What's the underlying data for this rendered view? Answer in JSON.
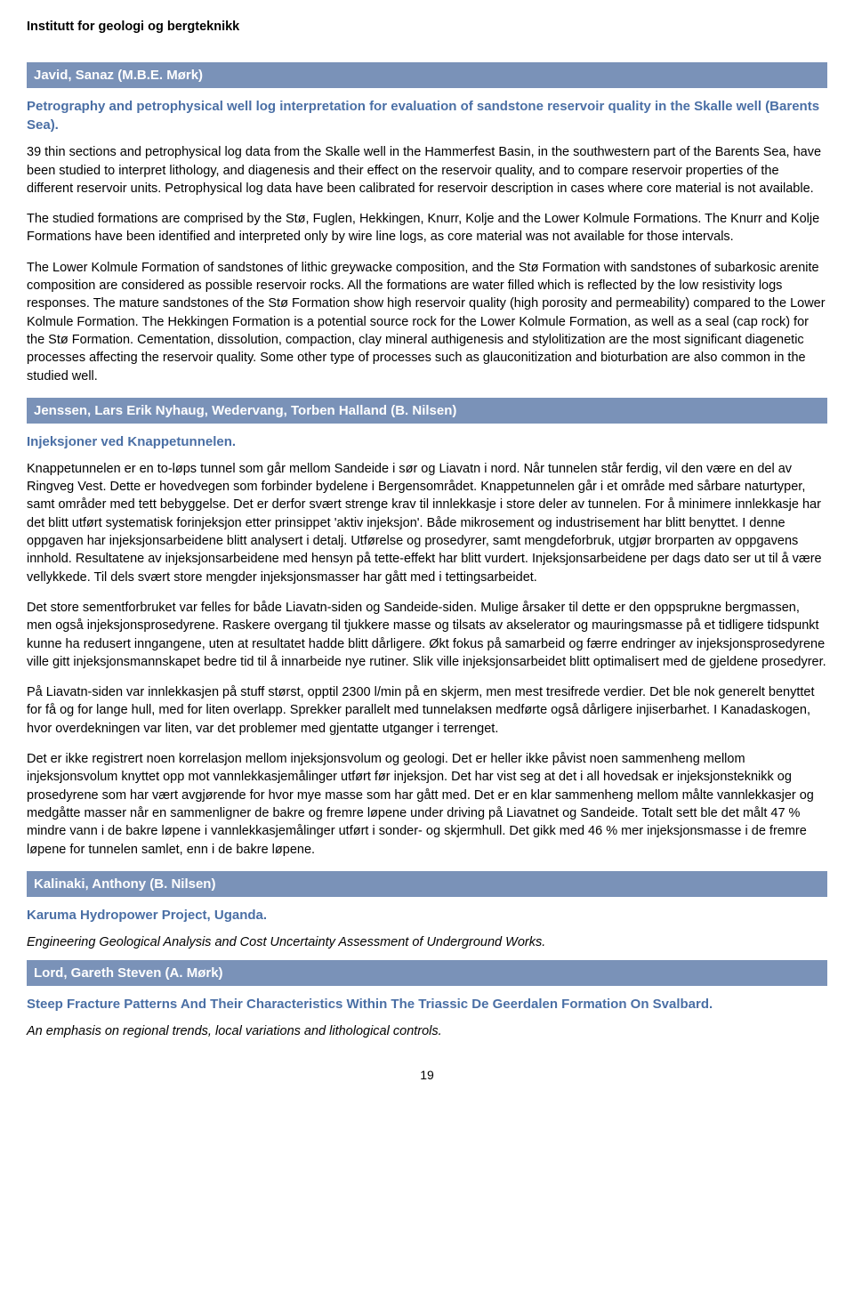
{
  "department": "Institutt for geologi og bergteknikk",
  "sections": [
    {
      "author": "Javid, Sanaz (M.B.E. Mørk)",
      "title": "Petrography and petrophysical well log interpretation for evaluation of sandstone reservoir quality in the Skalle well (Barents Sea).",
      "subtitle": "",
      "paragraphs": [
        "39 thin sections and petrophysical log data from the Skalle well in the Hammerfest Basin, in the southwestern part of the Barents Sea, have been studied to interpret lithology, and diagenesis and their effect on the reservoir quality, and to compare reservoir properties of the different reservoir units. Petrophysical log data have been calibrated for reservoir description in cases where core material is not available.",
        "The studied formations are comprised by the Stø, Fuglen, Hekkingen, Knurr, Kolje and the Lower Kolmule Formations. The Knurr and Kolje Formations have been identified and interpreted only by wire line logs, as core material was not available for those intervals.",
        "The Lower Kolmule Formation of sandstones of lithic greywacke composition, and the Stø Formation with sandstones of subarkosic arenite composition are considered as possible reservoir rocks. All the formations are water filled which is reflected by the low resistivity logs responses. The mature sandstones of the Stø Formation show high reservoir quality (high porosity and permeability) compared to the Lower Kolmule Formation. The Hekkingen Formation is a potential source rock for the Lower Kolmule Formation, as well as a seal (cap rock) for the Stø Formation. Cementation, dissolution, compaction, clay mineral authigenesis and stylolitization are the most significant diagenetic processes affecting the reservoir quality. Some other type of processes such as glauconitization and bioturbation are also common in the studied well."
      ]
    },
    {
      "author": "Jenssen, Lars Erik Nyhaug, Wedervang, Torben Halland (B. Nilsen)",
      "title": "Injeksjoner ved Knappetunnelen.",
      "subtitle": "",
      "paragraphs": [
        "Knappetunnelen er en to-løps tunnel som går mellom Sandeide i sør og Liavatn i nord. Når tunnelen står ferdig, vil den være en del av Ringveg Vest. Dette er hovedvegen som forbinder bydelene i Bergensområdet. Knappetunnelen går i et område med sårbare naturtyper, samt områder med tett bebyggelse. Det er derfor svært strenge krav til innlekkasje i store deler av tunnelen. For å minimere innlekkasje har det blitt utført systematisk forinjeksjon etter prinsippet 'aktiv injeksjon'. Både mikrosement og industrisement har blitt benyttet. I denne oppgaven har injeksjonsarbeidene blitt analysert i detalj. Utførelse og prosedyrer, samt mengdeforbruk, utgjør brorparten av oppgavens innhold. Resultatene av injeksjonsarbeidene med hensyn på tette-effekt har blitt vurdert. Injeksjonsarbeidene per dags dato ser ut til å være vellykkede. Til dels svært store mengder injeksjonsmasser har gått med i tettingsarbeidet.",
        "Det store sementforbruket var felles for både Liavatn-siden og Sandeide-siden. Mulige årsaker til dette er den oppsprukne bergmassen, men også injeksjonsprosedyrene. Raskere overgang til tjukkere masse og tilsats av akselerator og mauringsmasse på et tidligere tidspunkt kunne ha redusert inngangene, uten at resultatet hadde blitt dårligere. Økt fokus på samarbeid og færre endringer av injeksjonsprosedyrene ville gitt injeksjonsmannskapet bedre tid til å innarbeide nye rutiner. Slik ville injeksjonsarbeidet blitt optimalisert med de gjeldene prosedyrer.",
        "På Liavatn-siden var innlekkasjen på stuff størst, opptil 2300 l/min på en skjerm, men mest tresifrede verdier. Det ble nok generelt benyttet for få og for lange hull, med for liten overlapp. Sprekker parallelt med tunnelaksen medførte også dårligere injiserbarhet. I Kanadaskogen, hvor overdekningen var liten, var det problemer med gjentatte utganger i terrenget.",
        "Det er ikke registrert noen korrelasjon mellom injeksjonsvolum og geologi. Det er heller ikke påvist noen sammenheng mellom injeksjonsvolum knyttet opp mot vannlekkasjemålinger utført før injeksjon. Det har vist seg at det i all hovedsak er injeksjonsteknikk og prosedyrene som har vært avgjørende for hvor mye masse som har gått med. Det er en klar sammenheng mellom målte vannlekkasjer og medgåtte masser når en sammenligner de bakre og fremre løpene under driving på Liavatnet og Sandeide. Totalt sett ble det målt 47 % mindre vann i de bakre løpene i vannlekkasjemålinger utført i sonder- og skjermhull. Det gikk med 46 % mer injeksjonsmasse i de fremre løpene for tunnelen samlet, enn i de bakre løpene."
      ]
    },
    {
      "author": "Kalinaki, Anthony (B. Nilsen)",
      "title": "Karuma Hydropower Project, Uganda.",
      "subtitle": "Engineering Geological Analysis and Cost Uncertainty Assessment of Underground Works.",
      "paragraphs": []
    },
    {
      "author": "Lord, Gareth Steven (A. Mørk)",
      "title": "Steep Fracture Patterns And Their Characteristics Within The Triassic De Geerdalen Formation On Svalbard.",
      "subtitle": "An emphasis on regional trends, local variations and lithological controls.",
      "paragraphs": []
    }
  ],
  "pageNumber": "19",
  "colors": {
    "barBg": "#7a92b8",
    "barText": "#ffffff",
    "titleBlue": "#4a6fa5"
  }
}
